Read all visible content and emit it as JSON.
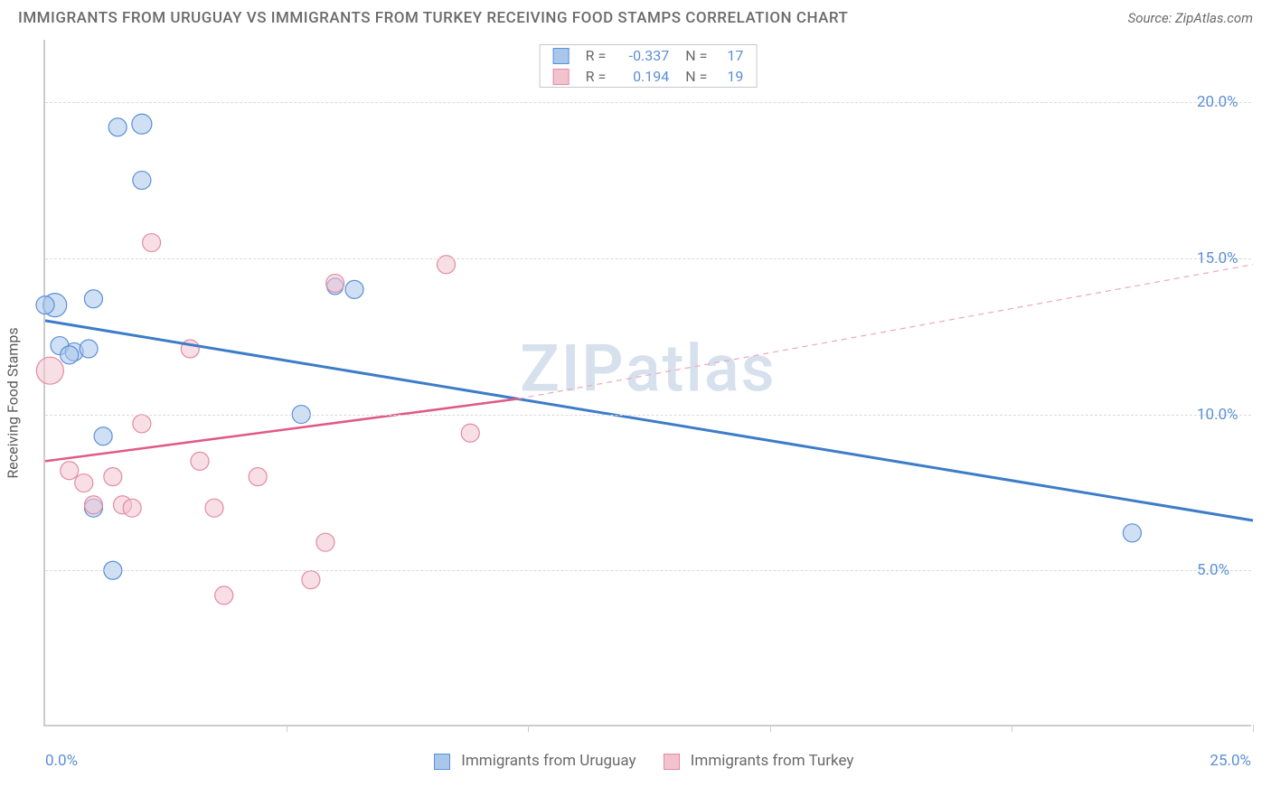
{
  "title": "IMMIGRANTS FROM URUGUAY VS IMMIGRANTS FROM TURKEY RECEIVING FOOD STAMPS CORRELATION CHART",
  "source": "Source: ZipAtlas.com",
  "yaxis_label": "Receiving Food Stamps",
  "watermark": "ZIPatlas",
  "chart": {
    "type": "scatter-correlation",
    "background_color": "#ffffff",
    "grid_color": "#dadada",
    "axis_color": "#cccccc",
    "xlim": [
      0,
      25
    ],
    "ylim": [
      0,
      22
    ],
    "xticks": [
      0,
      5,
      10,
      15,
      20,
      25
    ],
    "yticks": [
      5,
      10,
      15,
      20
    ],
    "ytick_labels": [
      "5.0%",
      "10.0%",
      "15.0%",
      "20.0%"
    ],
    "xaxis_min_label": "0.0%",
    "xaxis_max_label": "25.0%",
    "label_color": "#5b8fd6",
    "label_fontsize": 17,
    "series": [
      {
        "name": "Immigrants from Uruguay",
        "color_fill": "#a9c7eb",
        "color_stroke": "#5b8fd6",
        "marker_opacity": 0.55,
        "marker_r": 10,
        "R": "-0.337",
        "N": "17",
        "trend": {
          "x1": 0,
          "y1": 13.0,
          "x2": 25,
          "y2": 6.6,
          "stroke": "#3d7cc9",
          "width": 3,
          "dash": ""
        },
        "points": [
          {
            "x": 0.2,
            "y": 13.5,
            "r": 13
          },
          {
            "x": 0.3,
            "y": 12.2,
            "r": 10
          },
          {
            "x": 0.6,
            "y": 12.0,
            "r": 10
          },
          {
            "x": 0.9,
            "y": 12.1,
            "r": 10
          },
          {
            "x": 0.5,
            "y": 11.9,
            "r": 10
          },
          {
            "x": 1.0,
            "y": 13.7,
            "r": 10
          },
          {
            "x": 1.5,
            "y": 19.2,
            "r": 10
          },
          {
            "x": 2.0,
            "y": 19.3,
            "r": 11
          },
          {
            "x": 2.0,
            "y": 17.5,
            "r": 10
          },
          {
            "x": 1.2,
            "y": 9.3,
            "r": 10
          },
          {
            "x": 1.0,
            "y": 7.0,
            "r": 10
          },
          {
            "x": 1.4,
            "y": 5.0,
            "r": 10
          },
          {
            "x": 6.4,
            "y": 14.0,
            "r": 10
          },
          {
            "x": 6.0,
            "y": 14.1,
            "r": 9
          },
          {
            "x": 5.3,
            "y": 10.0,
            "r": 10
          },
          {
            "x": 22.5,
            "y": 6.2,
            "r": 10
          },
          {
            "x": 0.0,
            "y": 13.5,
            "r": 10
          }
        ]
      },
      {
        "name": "Immigrants from Turkey",
        "color_fill": "#f2c2cf",
        "color_stroke": "#e48aa4",
        "marker_opacity": 0.55,
        "marker_r": 10,
        "R": "0.194",
        "N": "19",
        "trend_solid": {
          "x1": 0,
          "y1": 8.5,
          "x2": 9.8,
          "y2": 10.5,
          "stroke": "#e05a87",
          "width": 2.5
        },
        "trend_dash": {
          "x1": 9.8,
          "y1": 10.5,
          "x2": 25,
          "y2": 14.8,
          "stroke": "#e9a8ba",
          "width": 1.2,
          "dash": "6,5"
        },
        "points": [
          {
            "x": 0.1,
            "y": 11.4,
            "r": 15
          },
          {
            "x": 0.5,
            "y": 8.2,
            "r": 10
          },
          {
            "x": 0.8,
            "y": 7.8,
            "r": 10
          },
          {
            "x": 1.4,
            "y": 8.0,
            "r": 10
          },
          {
            "x": 1.0,
            "y": 7.1,
            "r": 10
          },
          {
            "x": 1.6,
            "y": 7.1,
            "r": 10
          },
          {
            "x": 1.8,
            "y": 7.0,
            "r": 10
          },
          {
            "x": 2.0,
            "y": 9.7,
            "r": 10
          },
          {
            "x": 2.2,
            "y": 15.5,
            "r": 10
          },
          {
            "x": 3.0,
            "y": 12.1,
            "r": 10
          },
          {
            "x": 3.2,
            "y": 8.5,
            "r": 10
          },
          {
            "x": 3.5,
            "y": 7.0,
            "r": 10
          },
          {
            "x": 3.7,
            "y": 4.2,
            "r": 10
          },
          {
            "x": 4.4,
            "y": 8.0,
            "r": 10
          },
          {
            "x": 5.5,
            "y": 4.7,
            "r": 10
          },
          {
            "x": 5.8,
            "y": 5.9,
            "r": 10
          },
          {
            "x": 6.0,
            "y": 14.2,
            "r": 10
          },
          {
            "x": 8.3,
            "y": 14.8,
            "r": 10
          },
          {
            "x": 8.8,
            "y": 9.4,
            "r": 10
          }
        ]
      }
    ],
    "bottom_legend": [
      {
        "swatch": "blue",
        "label": "Immigrants from Uruguay"
      },
      {
        "swatch": "pink",
        "label": "Immigrants from Turkey"
      }
    ]
  }
}
